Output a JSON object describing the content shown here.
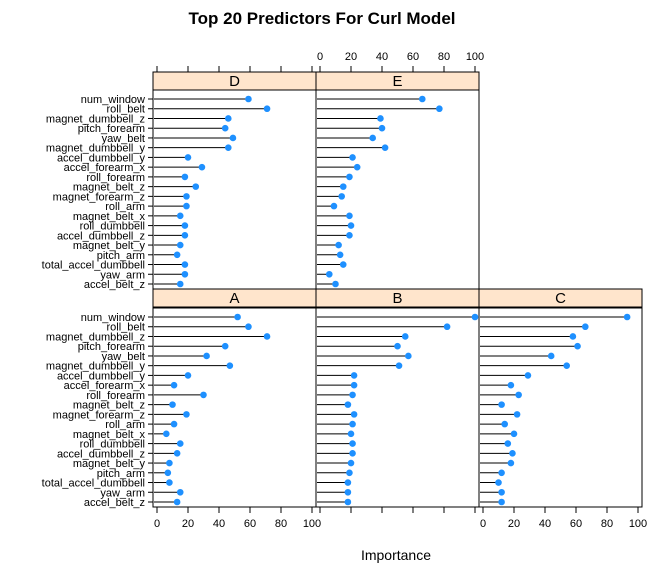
{
  "chart_data": {
    "type": "dotplot",
    "title": "Top 20 Predictors For Curl Model",
    "xlabel": "Importance",
    "ylabel": "",
    "xlim": [
      0,
      100
    ],
    "xticks": [
      0,
      20,
      40,
      60,
      80,
      100
    ],
    "colors": {
      "strip": "#ffe5cc",
      "point": "#1e90ff",
      "line": "#000000"
    },
    "variables": [
      "num_window",
      "roll_belt",
      "magnet_dumbbell_z",
      "pitch_forearm",
      "yaw_belt",
      "magnet_dumbbell_y",
      "accel_dumbbell_y",
      "accel_forearm_x",
      "roll_forearm",
      "magnet_belt_z",
      "magnet_forearm_z",
      "roll_arm",
      "magnet_belt_x",
      "roll_dumbbell",
      "accel_dumbbell_z",
      "magnet_belt_y",
      "pitch_arm",
      "total_accel_dumbbell",
      "yaw_arm",
      "accel_belt_z"
    ],
    "panels": [
      {
        "name": "D",
        "values": [
          59,
          71,
          46,
          44,
          49,
          46,
          20,
          29,
          18,
          25,
          19,
          19,
          15,
          18,
          18,
          15,
          13,
          18,
          18,
          15
        ]
      },
      {
        "name": "E",
        "values": [
          66,
          77,
          39,
          40,
          34,
          42,
          21,
          24,
          19,
          15,
          14,
          9,
          19,
          20,
          19,
          12,
          13,
          15,
          6,
          10
        ]
      },
      {
        "name": "A",
        "values": [
          52,
          59,
          71,
          44,
          32,
          47,
          20,
          11,
          30,
          10,
          19,
          11,
          6,
          15,
          13,
          8,
          7,
          8,
          15,
          13
        ]
      },
      {
        "name": "B",
        "values": [
          100,
          82,
          55,
          50,
          57,
          51,
          22,
          22,
          21,
          18,
          22,
          21,
          20,
          21,
          21,
          20,
          19,
          18,
          18,
          18
        ]
      },
      {
        "name": "C",
        "values": [
          93,
          66,
          58,
          61,
          44,
          54,
          29,
          18,
          23,
          12,
          22,
          14,
          20,
          16,
          19,
          18,
          12,
          10,
          12,
          12
        ]
      }
    ]
  }
}
